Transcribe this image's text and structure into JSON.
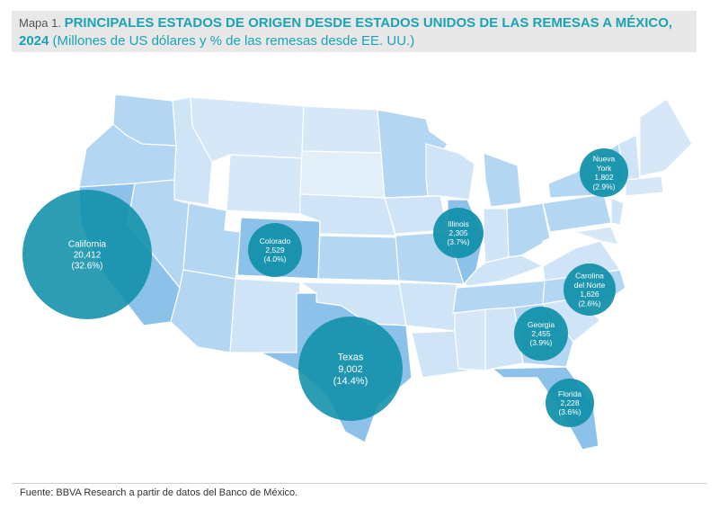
{
  "header": {
    "prefix": "Mapa 1. ",
    "title_line1": "PRINCIPALES ESTADOS DE ORIGEN DESDE ESTADOS UNIDOS DE LAS REMESAS A MÉXICO,",
    "title_line2_bold": "2024",
    "title_line2_rest": " (Millones de US dólares y % de las remesas desde EE. UU.)"
  },
  "footer": {
    "source": "Fuente: BBVA Research a partir de datos del Banco de México."
  },
  "colors": {
    "accent": "#1aa3b5",
    "bubble": "#0f8fa8",
    "state_light": "#d6e8f7",
    "state_mid": "#b3d6f2",
    "state_dark": "#8cc2ea"
  },
  "map": {
    "bubbles": [
      {
        "state": "California",
        "value": "20,412",
        "share": "(32.6%)",
        "amount_musd": 20412,
        "share_pct": 32.6
      },
      {
        "state": "Texas",
        "value": "9,002",
        "share": "(14.4%)",
        "amount_musd": 9002,
        "share_pct": 14.4
      },
      {
        "state": "Colorado",
        "value": "2,529",
        "share": "(4.0%)",
        "amount_musd": 2529,
        "share_pct": 4.0
      },
      {
        "state": "Illinois",
        "value": "2,305",
        "share": "(3.7%)",
        "amount_musd": 2305,
        "share_pct": 3.7
      },
      {
        "state": "Nueva York",
        "value": "1,802",
        "share": "(2.9%)",
        "amount_musd": 1802,
        "share_pct": 2.9
      },
      {
        "state": "Carolina del Norte",
        "value": "1,626",
        "share": "(2.6%)",
        "amount_musd": 1626,
        "share_pct": 2.6
      },
      {
        "state": "Georgia",
        "value": "2,455",
        "share": "(3.9%)",
        "amount_musd": 2455,
        "share_pct": 3.9
      },
      {
        "state": "Florida",
        "value": "2,228",
        "share": "(3.6%)",
        "amount_musd": 2228,
        "share_pct": 3.6
      }
    ]
  }
}
